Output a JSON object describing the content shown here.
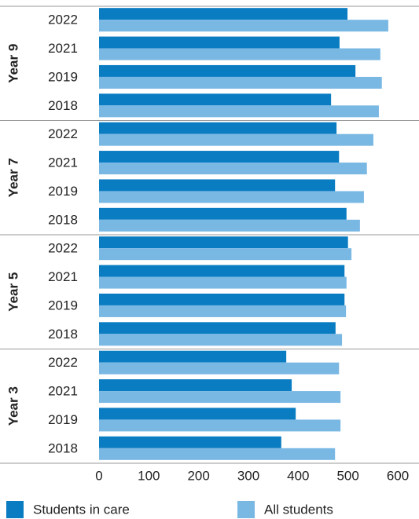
{
  "chart_data": {
    "type": "bar",
    "orientation": "horizontal",
    "groups": [
      "Year 9",
      "Year 7",
      "Year 5",
      "Year 3"
    ],
    "categories": [
      "2022",
      "2021",
      "2019",
      "2018"
    ],
    "series": [
      {
        "name": "Students in care",
        "color": "#0a7cc1",
        "values": [
          [
            499,
            483,
            515,
            466
          ],
          [
            477,
            482,
            474,
            497
          ],
          [
            500,
            493,
            493,
            475
          ],
          [
            376,
            387,
            395,
            366
          ]
        ]
      },
      {
        "name": "All students",
        "color": "#7ab8e4",
        "values": [
          [
            581,
            565,
            568,
            562
          ],
          [
            551,
            538,
            532,
            524
          ],
          [
            507,
            497,
            496,
            488
          ],
          [
            482,
            485,
            485,
            474
          ]
        ]
      }
    ],
    "xlim": [
      0,
      600
    ],
    "xticks": [
      0,
      100,
      200,
      300,
      400,
      500,
      600
    ]
  }
}
